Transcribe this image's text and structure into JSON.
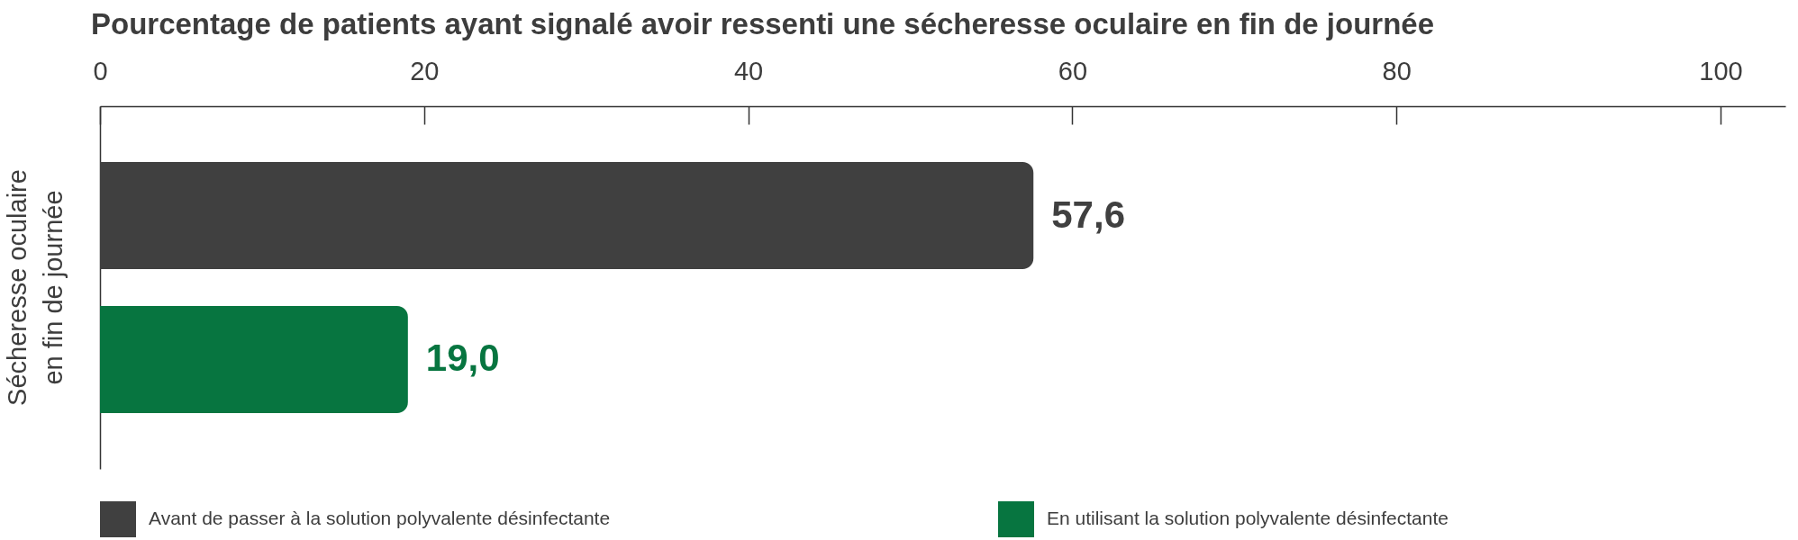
{
  "chart_data": {
    "type": "bar",
    "orientation": "horizontal",
    "title": "Pourcentage de patients ayant signalé avoir ressenti une sécheresse oculaire en fin de journée",
    "categories": [
      "Sécheresse oculaire en fin de journée"
    ],
    "series": [
      {
        "name": "Avant de passer à la solution polyvalente désinfectante",
        "color": "#404040",
        "values": [
          57.6
        ],
        "value_labels": [
          "57,6"
        ]
      },
      {
        "name": "En utilisant la solution polyvalente désinfectante",
        "color": "#077540",
        "values": [
          19.0
        ],
        "value_labels": [
          "19,0"
        ]
      }
    ],
    "xlim": [
      0,
      104
    ],
    "xticks": [
      0,
      20,
      40,
      60,
      80,
      100
    ],
    "legend": "bottom"
  }
}
